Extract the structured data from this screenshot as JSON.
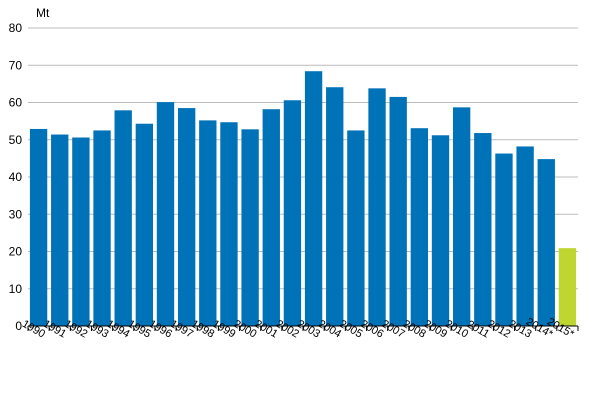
{
  "chart_data": {
    "type": "bar",
    "unit_label": "Mt",
    "categories": [
      "1990",
      "1991",
      "1992",
      "1993",
      "1994",
      "1995",
      "1996",
      "1997",
      "1998",
      "1999",
      "2000",
      "2001",
      "2002",
      "2003",
      "2004",
      "2005",
      "2006",
      "2007",
      "2008",
      "2009",
      "2010",
      "2011",
      "2012",
      "2013",
      "2014*",
      "2015*"
    ],
    "values": [
      52.9,
      51.4,
      50.6,
      52.5,
      57.9,
      54.3,
      60.1,
      58.5,
      55.2,
      54.7,
      52.8,
      58.2,
      60.6,
      68.4,
      64.1,
      52.5,
      63.8,
      61.5,
      53.1,
      51.2,
      58.7,
      51.8,
      46.3,
      48.2,
      44.8,
      20.9
    ],
    "bar_colors": [
      "#0072b8",
      "#0072b8",
      "#0072b8",
      "#0072b8",
      "#0072b8",
      "#0072b8",
      "#0072b8",
      "#0072b8",
      "#0072b8",
      "#0072b8",
      "#0072b8",
      "#0072b8",
      "#0072b8",
      "#0072b8",
      "#0072b8",
      "#0072b8",
      "#0072b8",
      "#0072b8",
      "#0072b8",
      "#0072b8",
      "#0072b8",
      "#0072b8",
      "#0072b8",
      "#0072b8",
      "#0072b8",
      "#bed62f"
    ],
    "ylim": [
      0,
      80
    ],
    "yticks": [
      0,
      10,
      20,
      30,
      40,
      50,
      60,
      70,
      80
    ],
    "grid": true
  }
}
